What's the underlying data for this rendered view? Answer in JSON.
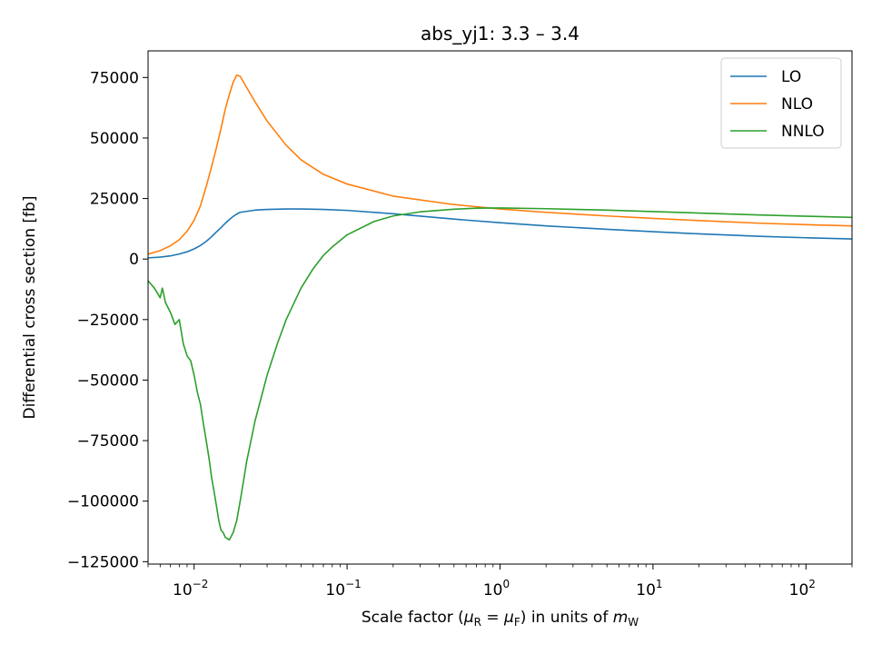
{
  "chart_data": {
    "type": "line",
    "title": "abs_yj1: 3.3 – 3.4",
    "xlabel_parts": [
      "Scale factor (",
      "μ",
      "R",
      " = ",
      "μ",
      "F",
      ") in units of ",
      "m",
      "W"
    ],
    "ylabel": "Differential cross section [fb]",
    "x_scale": "log",
    "xlim": [
      0.005,
      200
    ],
    "ylim": [
      -126000,
      86000
    ],
    "x_ticks": [
      {
        "value": 0.01,
        "base": "10",
        "exp": "−2"
      },
      {
        "value": 0.1,
        "base": "10",
        "exp": "−1"
      },
      {
        "value": 1,
        "base": "10",
        "exp": "0"
      },
      {
        "value": 10,
        "base": "10",
        "exp": "1"
      },
      {
        "value": 100,
        "base": "10",
        "exp": "2"
      }
    ],
    "y_ticks": [
      {
        "value": 75000,
        "label": "75000"
      },
      {
        "value": 50000,
        "label": "50000"
      },
      {
        "value": 25000,
        "label": "25000"
      },
      {
        "value": 0,
        "label": "0"
      },
      {
        "value": -25000,
        "label": "−25000"
      },
      {
        "value": -50000,
        "label": "−50000"
      },
      {
        "value": -75000,
        "label": "−75000"
      },
      {
        "value": -100000,
        "label": "−100000"
      },
      {
        "value": -125000,
        "label": "−125000"
      }
    ],
    "grid": false,
    "legend_position": "top-right",
    "series": [
      {
        "name": "LO",
        "color": "#1f77b4",
        "points": [
          [
            0.005,
            500
          ],
          [
            0.006,
            800
          ],
          [
            0.007,
            1300
          ],
          [
            0.008,
            2100
          ],
          [
            0.009,
            3000
          ],
          [
            0.01,
            4200
          ],
          [
            0.011,
            5600
          ],
          [
            0.012,
            7300
          ],
          [
            0.013,
            9200
          ],
          [
            0.014,
            11200
          ],
          [
            0.015,
            13000
          ],
          [
            0.016,
            14800
          ],
          [
            0.017,
            16300
          ],
          [
            0.018,
            17600
          ],
          [
            0.019,
            18600
          ],
          [
            0.02,
            19300
          ],
          [
            0.025,
            20200
          ],
          [
            0.03,
            20500
          ],
          [
            0.04,
            20700
          ],
          [
            0.05,
            20700
          ],
          [
            0.07,
            20500
          ],
          [
            0.1,
            20100
          ],
          [
            0.2,
            18700
          ],
          [
            0.5,
            16500
          ],
          [
            1,
            15000
          ],
          [
            2,
            13700
          ],
          [
            5,
            12300
          ],
          [
            10,
            11300
          ],
          [
            20,
            10400
          ],
          [
            50,
            9400
          ],
          [
            100,
            8800
          ],
          [
            200,
            8300
          ]
        ]
      },
      {
        "name": "NLO",
        "color": "#ff7f0e",
        "points": [
          [
            0.005,
            2000
          ],
          [
            0.006,
            3500
          ],
          [
            0.007,
            5500
          ],
          [
            0.008,
            8000
          ],
          [
            0.009,
            11500
          ],
          [
            0.01,
            16000
          ],
          [
            0.011,
            22000
          ],
          [
            0.012,
            30000
          ],
          [
            0.013,
            38000
          ],
          [
            0.014,
            46000
          ],
          [
            0.015,
            54000
          ],
          [
            0.016,
            62000
          ],
          [
            0.017,
            68000
          ],
          [
            0.018,
            73000
          ],
          [
            0.019,
            76000
          ],
          [
            0.02,
            75500
          ],
          [
            0.022,
            71000
          ],
          [
            0.025,
            65000
          ],
          [
            0.03,
            57000
          ],
          [
            0.04,
            47000
          ],
          [
            0.05,
            41000
          ],
          [
            0.07,
            35000
          ],
          [
            0.1,
            31000
          ],
          [
            0.2,
            26000
          ],
          [
            0.5,
            22500
          ],
          [
            1,
            20700
          ],
          [
            2,
            19300
          ],
          [
            5,
            17800
          ],
          [
            10,
            16800
          ],
          [
            20,
            15900
          ],
          [
            50,
            14800
          ],
          [
            100,
            14200
          ],
          [
            200,
            13700
          ]
        ]
      },
      {
        "name": "NNLO",
        "color": "#2ca02c",
        "points": [
          [
            0.005,
            -9000
          ],
          [
            0.0055,
            -12000
          ],
          [
            0.006,
            -16000
          ],
          [
            0.0062,
            -12000
          ],
          [
            0.0065,
            -18000
          ],
          [
            0.007,
            -22000
          ],
          [
            0.0075,
            -27000
          ],
          [
            0.008,
            -25000
          ],
          [
            0.0085,
            -35000
          ],
          [
            0.009,
            -40000
          ],
          [
            0.0095,
            -42000
          ],
          [
            0.01,
            -48000
          ],
          [
            0.0105,
            -55000
          ],
          [
            0.011,
            -60000
          ],
          [
            0.0115,
            -68000
          ],
          [
            0.012,
            -75000
          ],
          [
            0.0125,
            -82000
          ],
          [
            0.013,
            -90000
          ],
          [
            0.0135,
            -96000
          ],
          [
            0.014,
            -102000
          ],
          [
            0.0145,
            -108000
          ],
          [
            0.015,
            -112000
          ],
          [
            0.0155,
            -113000
          ],
          [
            0.016,
            -115000
          ],
          [
            0.017,
            -116000
          ],
          [
            0.018,
            -113000
          ],
          [
            0.019,
            -108000
          ],
          [
            0.02,
            -100000
          ],
          [
            0.021,
            -92000
          ],
          [
            0.022,
            -84000
          ],
          [
            0.025,
            -67000
          ],
          [
            0.03,
            -48000
          ],
          [
            0.035,
            -35000
          ],
          [
            0.04,
            -25000
          ],
          [
            0.05,
            -12000
          ],
          [
            0.06,
            -4000
          ],
          [
            0.07,
            1500
          ],
          [
            0.08,
            5000
          ],
          [
            0.1,
            10000
          ],
          [
            0.15,
            15500
          ],
          [
            0.2,
            17800
          ],
          [
            0.3,
            19500
          ],
          [
            0.5,
            20600
          ],
          [
            0.7,
            21000
          ],
          [
            1,
            21100
          ],
          [
            2,
            20800
          ],
          [
            5,
            20200
          ],
          [
            10,
            19600
          ],
          [
            20,
            19000
          ],
          [
            50,
            18200
          ],
          [
            100,
            17700
          ],
          [
            200,
            17200
          ]
        ]
      }
    ]
  }
}
